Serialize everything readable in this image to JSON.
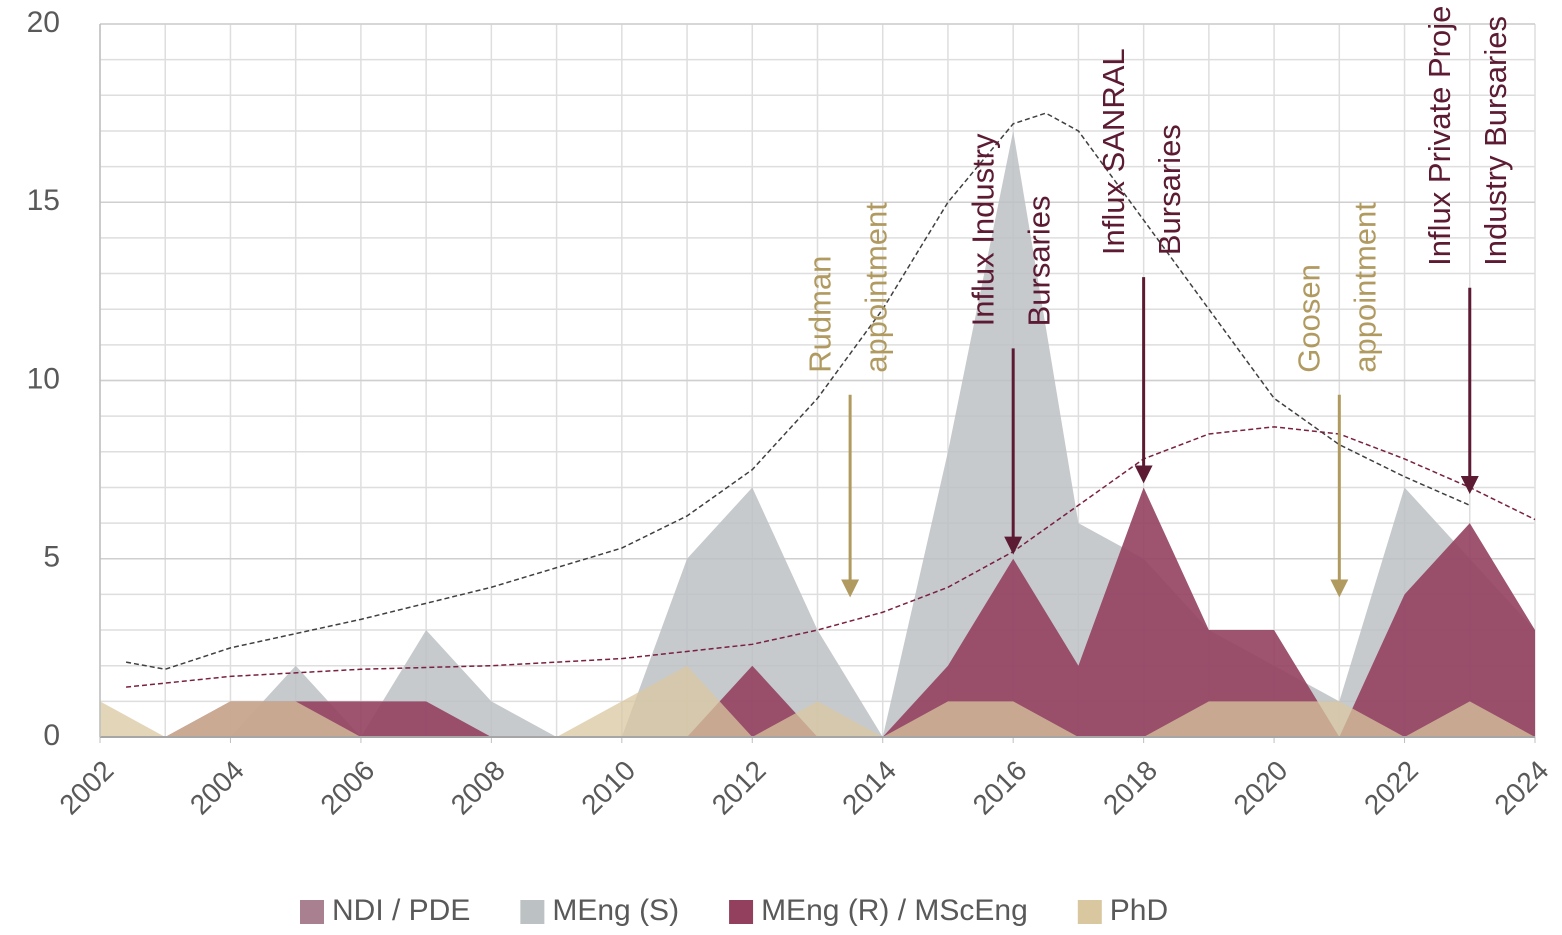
{
  "chart_data": {
    "type": "area",
    "x": [
      2002,
      2003,
      2004,
      2005,
      2006,
      2007,
      2008,
      2009,
      2010,
      2011,
      2012,
      2013,
      2014,
      2015,
      2016,
      2017,
      2018,
      2019,
      2020,
      2021,
      2022,
      2023,
      2024
    ],
    "series": [
      {
        "name": "NDI / PDE",
        "color": "#a8808f",
        "values": [
          0,
          0,
          0,
          0,
          0,
          0,
          0,
          0,
          0,
          0,
          0,
          0,
          0,
          0,
          0,
          0,
          0,
          0,
          0,
          0,
          0,
          0,
          0
        ]
      },
      {
        "name": "MEng (S)",
        "color": "#bcc1c4",
        "values": [
          0,
          0,
          0,
          2,
          0,
          3,
          1,
          0,
          0,
          5,
          7,
          3,
          0,
          8,
          17,
          6,
          5,
          3,
          2,
          1,
          7,
          5,
          3
        ]
      },
      {
        "name": "MEng (R) / MScEng",
        "color": "#93405f",
        "values": [
          0,
          0,
          1,
          1,
          1,
          1,
          0,
          0,
          0,
          0,
          2,
          0,
          0,
          2,
          5,
          2,
          7,
          3,
          3,
          0,
          4,
          6,
          3
        ]
      },
      {
        "name": "PhD",
        "color": "#d9c7a0",
        "values": [
          1,
          0,
          1,
          1,
          0,
          0,
          0,
          0,
          1,
          2,
          0,
          1,
          0,
          1,
          1,
          0,
          0,
          1,
          1,
          1,
          0,
          1,
          0
        ]
      }
    ],
    "trendlines": [
      {
        "color": "#404040",
        "x": [
          2002.4,
          2003,
          2004,
          2006,
          2008,
          2010,
          2011,
          2012,
          2013,
          2014,
          2015,
          2016,
          2016.5,
          2017,
          2018,
          2019,
          2020,
          2021,
          2022,
          2023
        ],
        "values": [
          2.1,
          1.9,
          2.5,
          3.3,
          4.2,
          5.3,
          6.2,
          7.5,
          9.5,
          12,
          15,
          17.2,
          17.5,
          17,
          14.5,
          12,
          9.5,
          8.2,
          7.3,
          6.5
        ]
      },
      {
        "color": "#7a2040",
        "x": [
          2002.4,
          2004,
          2006,
          2008,
          2010,
          2012,
          2013,
          2014,
          2015,
          2016,
          2017,
          2018,
          2019,
          2020,
          2021,
          2022,
          2023,
          2024
        ],
        "values": [
          1.4,
          1.7,
          1.9,
          2.0,
          2.2,
          2.6,
          3.0,
          3.5,
          4.2,
          5.2,
          6.5,
          7.8,
          8.5,
          8.7,
          8.5,
          7.8,
          7.0,
          6.1
        ]
      }
    ],
    "annotations": [
      {
        "lines": [
          "Rudman",
          "appointment"
        ],
        "x": 2013.5,
        "arrow": [
          9.6,
          4
        ],
        "color": "#b09a60"
      },
      {
        "lines": [
          "Influx Industry",
          "Bursaries"
        ],
        "x": 2016,
        "arrow": [
          10.9,
          5.2
        ],
        "color": "#5c1a33"
      },
      {
        "lines": [
          "Influx SANRAL",
          "Bursaries"
        ],
        "x": 2018,
        "arrow": [
          12.9,
          7.2
        ],
        "color": "#5c1a33"
      },
      {
        "lines": [
          "Goosen",
          "appointment"
        ],
        "x": 2021,
        "arrow": [
          9.6,
          4
        ],
        "color": "#b09a60"
      },
      {
        "lines": [
          "Influx Private Proje",
          "Industry Bursaries"
        ],
        "x": 2023,
        "arrow": [
          12.6,
          6.9
        ],
        "color": "#5c1a33"
      }
    ],
    "xlim": [
      2002,
      2024
    ],
    "xticks": [
      2002,
      2004,
      2006,
      2008,
      2010,
      2012,
      2014,
      2016,
      2018,
      2020,
      2022,
      2024
    ],
    "ylim": [
      0,
      20
    ],
    "yticks": [
      0,
      5,
      10,
      15,
      20
    ],
    "grid": true,
    "minor_step": 1,
    "legend": "bottom"
  }
}
